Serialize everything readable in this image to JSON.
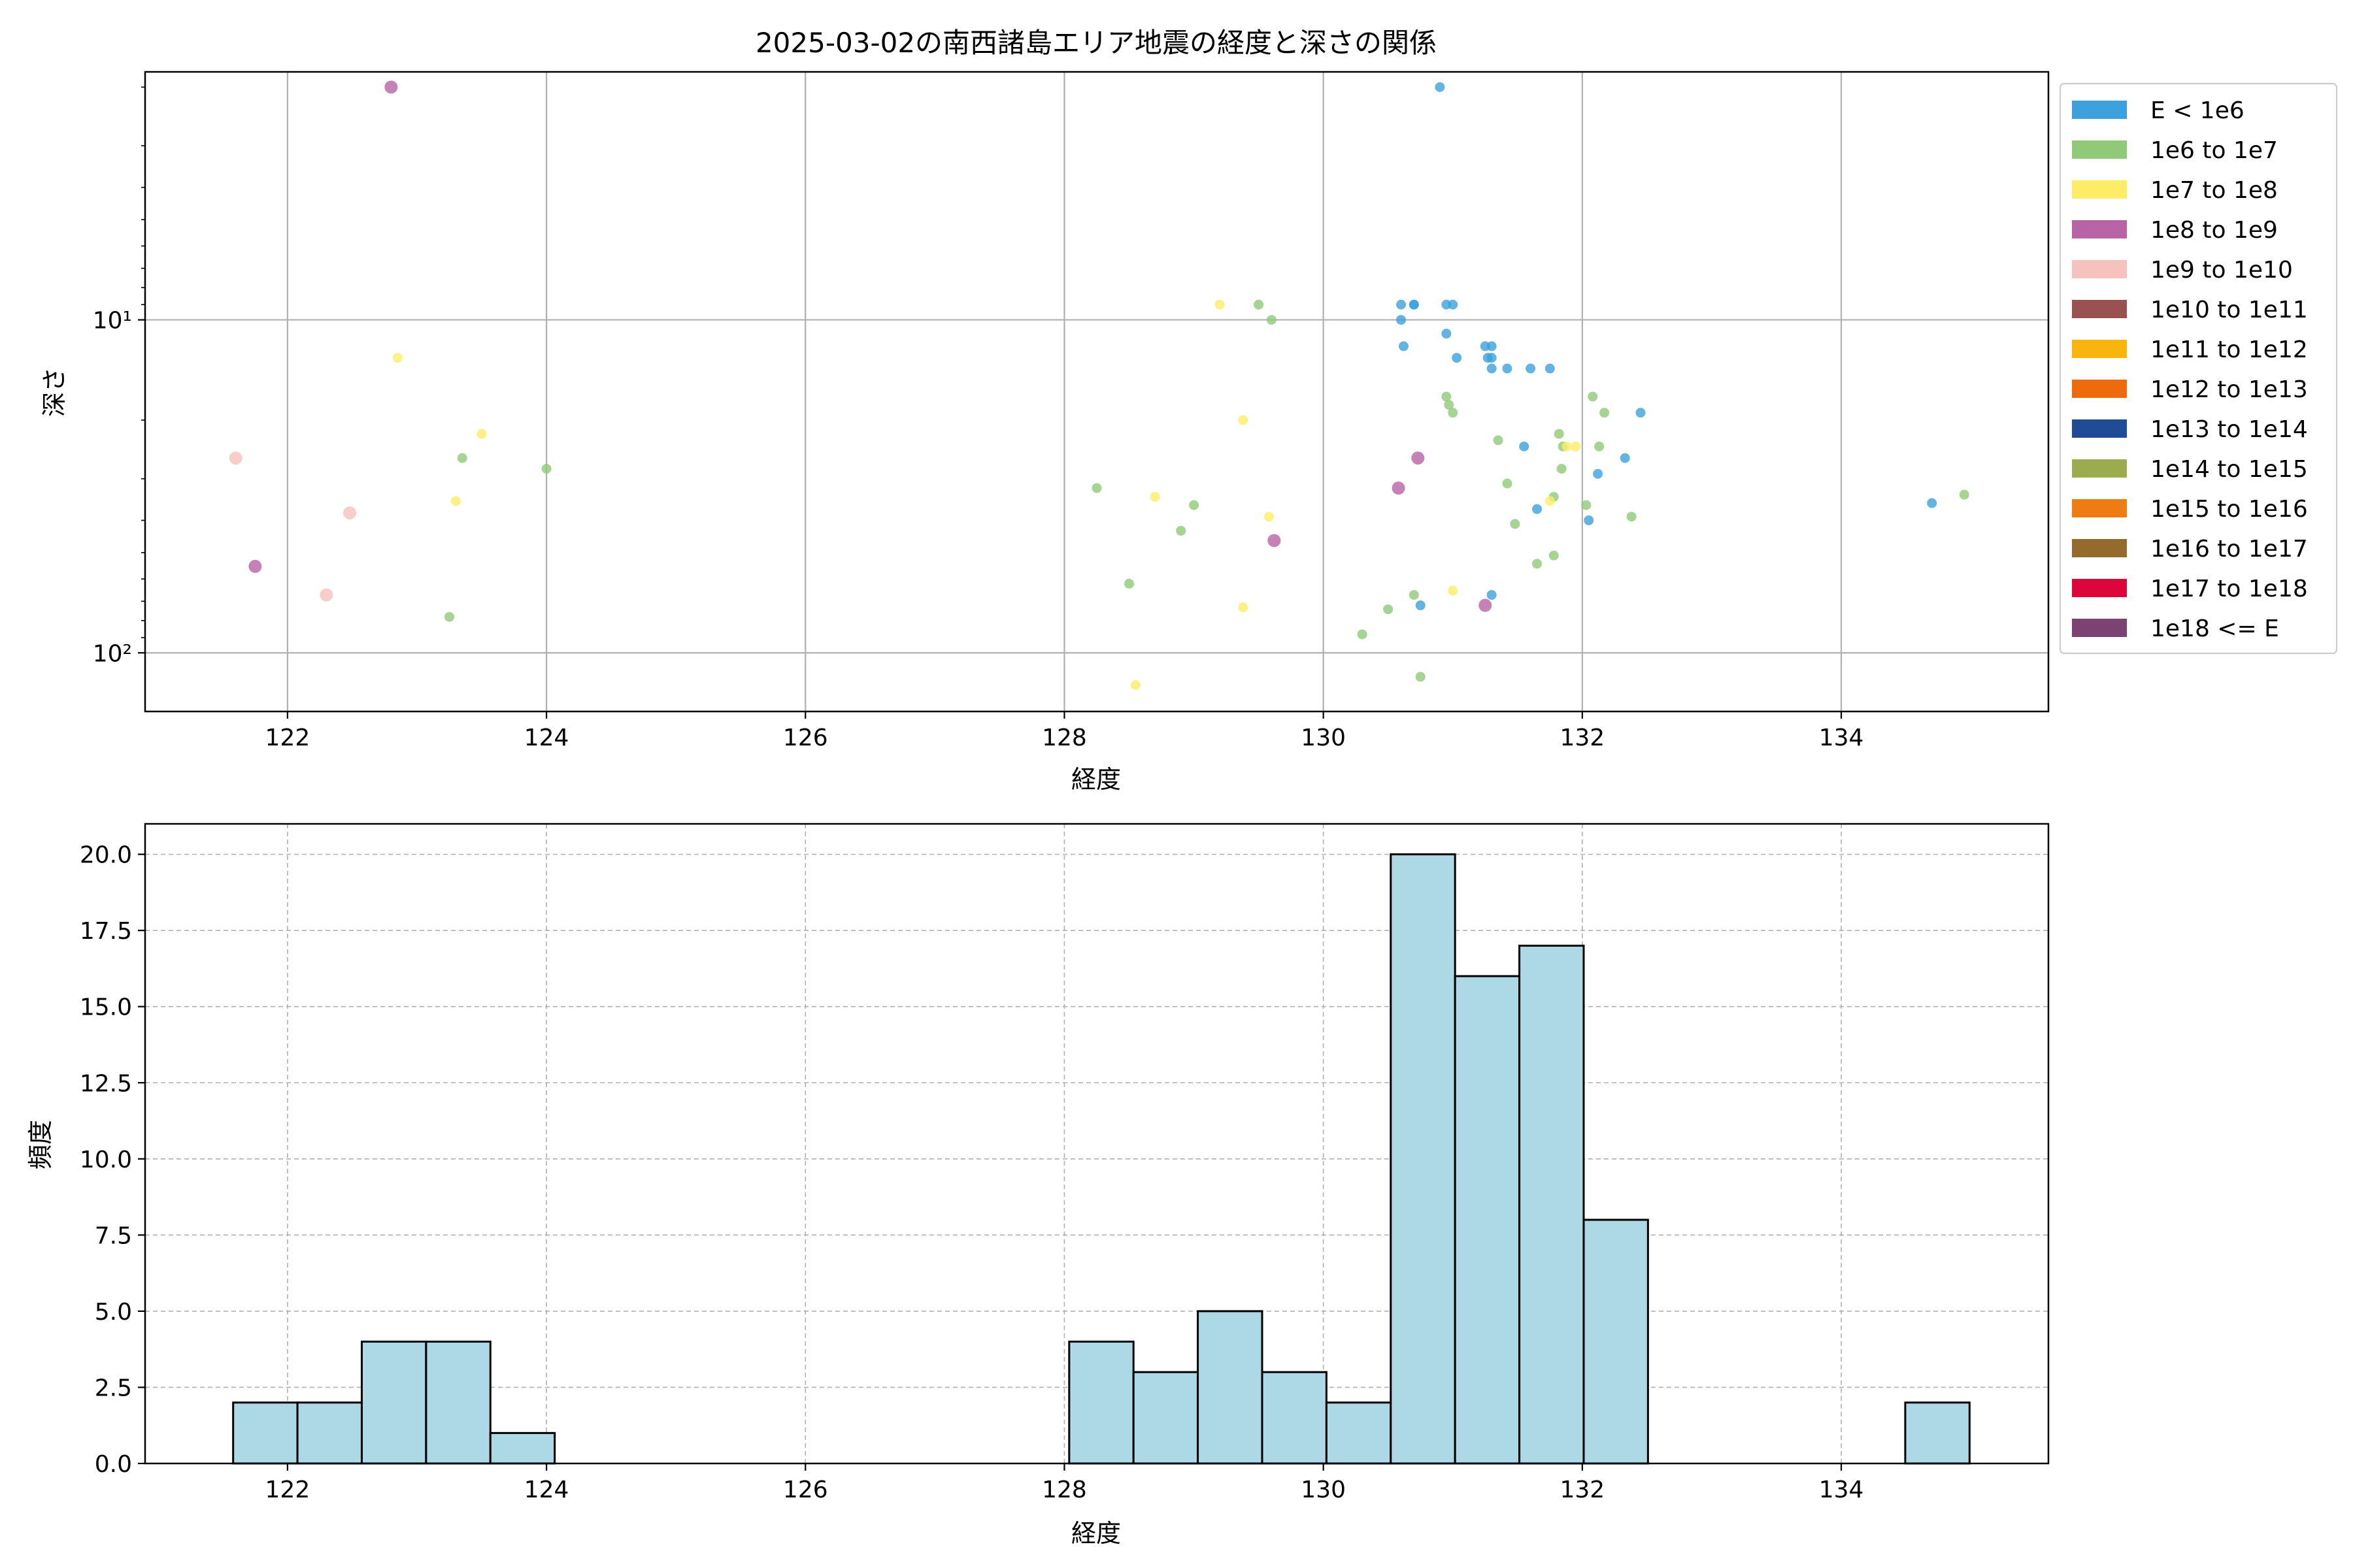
{
  "chart_data": [
    {
      "type": "scatter",
      "title": "2025-03-02の南西諸島エリア地震の経度と深さの関係",
      "xlabel": "経度",
      "ylabel": "深さ",
      "x_scale": "linear",
      "y_scale": "log",
      "y_inverted": true,
      "xlim": [
        120.9,
        135.6
      ],
      "ylim": [
        150,
        1.8
      ],
      "x_ticks": [
        122,
        124,
        126,
        128,
        130,
        132,
        134
      ],
      "y_ticks": [
        10,
        100
      ],
      "y_tick_labels": [
        "10¹",
        "10²"
      ],
      "grid": true,
      "legend_position": "outside-right",
      "legend": [
        {
          "label": "E < 1e6",
          "color": "#3ca1dc"
        },
        {
          "label": "1e6 to 1e7",
          "color": "#90c978"
        },
        {
          "label": "1e7 to 1e8",
          "color": "#fded66"
        },
        {
          "label": "1e8 to 1e9",
          "color": "#b863a5"
        },
        {
          "label": "1e9 to 1e10",
          "color": "#f6c2bd"
        },
        {
          "label": "1e10 to 1e11",
          "color": "#9a5250"
        },
        {
          "label": "1e11 to 1e12",
          "color": "#f9b40d"
        },
        {
          "label": "1e12 to 1e13",
          "color": "#ee6a0c"
        },
        {
          "label": "1e13 to 1e14",
          "color": "#1f4c94"
        },
        {
          "label": "1e14 to 1e15",
          "color": "#9bac4f"
        },
        {
          "label": "1e15 to 1e16",
          "color": "#ef7c12"
        },
        {
          "label": "1e16 to 1e17",
          "color": "#946b2d"
        },
        {
          "label": "1e17 to 1e18",
          "color": "#dd063a"
        },
        {
          "label": "1e18 <= E",
          "color": "#7b4272"
        }
      ],
      "series": [
        {
          "name": "E < 1e6",
          "points": [
            [
              130.9,
              2
            ],
            [
              130.6,
              9
            ],
            [
              130.7,
              9
            ],
            [
              130.7,
              9
            ],
            [
              130.95,
              9
            ],
            [
              131.0,
              9
            ],
            [
              130.6,
              10
            ],
            [
              130.95,
              11
            ],
            [
              130.62,
              12
            ],
            [
              131.03,
              13
            ],
            [
              131.25,
              12
            ],
            [
              131.3,
              12
            ],
            [
              131.27,
              13
            ],
            [
              131.3,
              13
            ],
            [
              131.3,
              14
            ],
            [
              131.42,
              14
            ],
            [
              131.6,
              14
            ],
            [
              131.75,
              14
            ],
            [
              132.45,
              19
            ],
            [
              131.55,
              24
            ],
            [
              132.33,
              26
            ],
            [
              132.12,
              29
            ],
            [
              131.65,
              37
            ],
            [
              132.05,
              40
            ],
            [
              134.7,
              35.5
            ],
            [
              130.75,
              72
            ],
            [
              131.3,
              67
            ]
          ]
        },
        {
          "name": "1e6 to 1e7",
          "points": [
            [
              123.35,
              26
            ],
            [
              124.0,
              28
            ],
            [
              123.25,
              78
            ],
            [
              128.25,
              32
            ],
            [
              129.0,
              36
            ],
            [
              128.9,
              43
            ],
            [
              128.5,
              62
            ],
            [
              129.5,
              9
            ],
            [
              129.6,
              10
            ],
            [
              130.95,
              17
            ],
            [
              130.97,
              18
            ],
            [
              131.0,
              19
            ],
            [
              131.35,
              23
            ],
            [
              131.42,
              31
            ],
            [
              131.48,
              41
            ],
            [
              131.65,
              54
            ],
            [
              131.78,
              51
            ],
            [
              131.82,
              22
            ],
            [
              131.85,
              24
            ],
            [
              131.84,
              28
            ],
            [
              131.78,
              34
            ],
            [
              132.08,
              17
            ],
            [
              132.17,
              19
            ],
            [
              132.13,
              24
            ],
            [
              132.03,
              36
            ],
            [
              132.38,
              39
            ],
            [
              130.5,
              74
            ],
            [
              130.7,
              67
            ],
            [
              130.3,
              88
            ],
            [
              130.75,
              118
            ],
            [
              134.95,
              33.5
            ]
          ]
        },
        {
          "name": "1e7 to 1e8",
          "points": [
            [
              122.85,
              13
            ],
            [
              123.5,
              22
            ],
            [
              123.3,
              35
            ],
            [
              128.7,
              34
            ],
            [
              128.55,
              125
            ],
            [
              129.2,
              9
            ],
            [
              129.38,
              20
            ],
            [
              129.58,
              39
            ],
            [
              129.38,
              73
            ],
            [
              131.0,
              65
            ],
            [
              131.75,
              35
            ],
            [
              131.88,
              24
            ],
            [
              131.95,
              24
            ]
          ]
        },
        {
          "name": "1e8 to 1e9",
          "points": [
            [
              122.8,
              2
            ],
            [
              121.75,
              55
            ],
            [
              129.62,
              46
            ],
            [
              130.58,
              32
            ],
            [
              130.73,
              26
            ],
            [
              131.25,
              72
            ]
          ]
        },
        {
          "name": "1e9 to 1e10",
          "points": [
            [
              121.6,
              26
            ],
            [
              122.48,
              38
            ],
            [
              122.3,
              67
            ]
          ]
        }
      ]
    },
    {
      "type": "bar",
      "subtype": "histogram",
      "title": "",
      "xlabel": "経度",
      "ylabel": "頻度",
      "xlim": [
        120.9,
        135.6
      ],
      "ylim": [
        0,
        21
      ],
      "x_ticks": [
        122,
        124,
        126,
        128,
        130,
        132,
        134
      ],
      "y_ticks": [
        0.0,
        2.5,
        5.0,
        7.5,
        10.0,
        12.5,
        15.0,
        17.5,
        20.0
      ],
      "grid": true,
      "bar_color": "#add8e6",
      "edge_color": "#000000",
      "bin_start": 121.58,
      "bin_width": 0.4967,
      "values": [
        2,
        2,
        4,
        4,
        1,
        0,
        0,
        0,
        0,
        0,
        0,
        0,
        0,
        4,
        3,
        5,
        3,
        2,
        20,
        16,
        17,
        8,
        0,
        0,
        0,
        0,
        2
      ]
    }
  ]
}
